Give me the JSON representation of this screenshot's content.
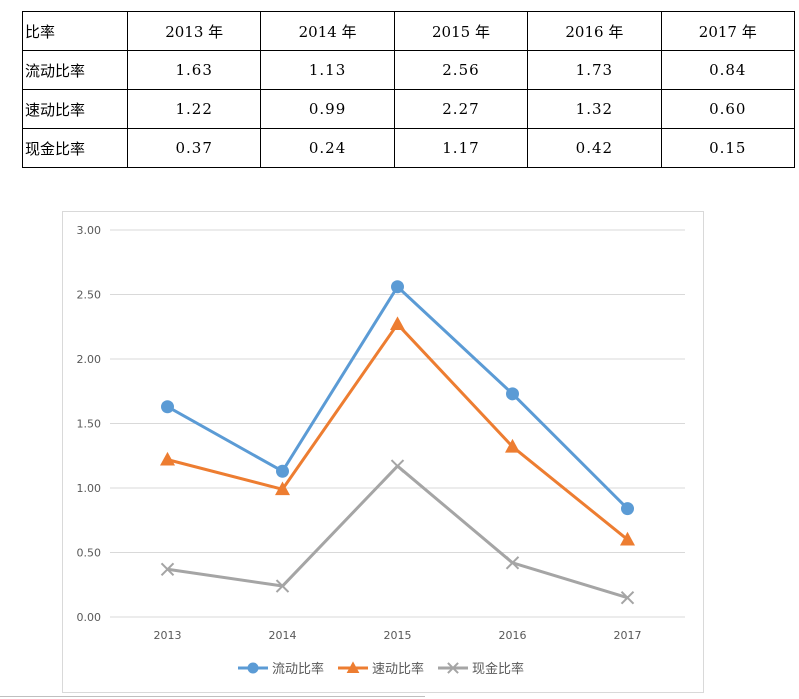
{
  "table": {
    "header": [
      "比率",
      "2013 年",
      "2014 年",
      "2015 年",
      "2016 年",
      "2017 年"
    ],
    "rows": [
      {
        "label": "流动比率",
        "values": [
          "1.63",
          "1.13",
          "2.56",
          "1.73",
          "0.84"
        ]
      },
      {
        "label": "速动比率",
        "values": [
          "1.22",
          "0.99",
          "2.27",
          "1.32",
          "0.60"
        ]
      },
      {
        "label": "现金比率",
        "values": [
          "0.37",
          "0.24",
          "1.17",
          "0.42",
          "0.15"
        ]
      }
    ]
  },
  "chart_data": {
    "type": "line",
    "categories": [
      "2013",
      "2014",
      "2015",
      "2016",
      "2017"
    ],
    "ylim": [
      0,
      3
    ],
    "yticks": [
      "0.00",
      "0.50",
      "1.00",
      "1.50",
      "2.00",
      "2.50",
      "3.00"
    ],
    "grid": true,
    "legend": "bottom",
    "series": [
      {
        "name": "流动比率",
        "values": [
          1.63,
          1.13,
          2.56,
          1.73,
          0.84
        ],
        "color": "#5b9bd5",
        "marker": "circle"
      },
      {
        "name": "速动比率",
        "values": [
          1.22,
          0.99,
          2.27,
          1.32,
          0.6
        ],
        "color": "#ed7d31",
        "marker": "triangle"
      },
      {
        "name": "现金比率",
        "values": [
          0.37,
          0.24,
          1.17,
          0.42,
          0.15
        ],
        "color": "#a5a5a5",
        "marker": "x"
      }
    ]
  }
}
